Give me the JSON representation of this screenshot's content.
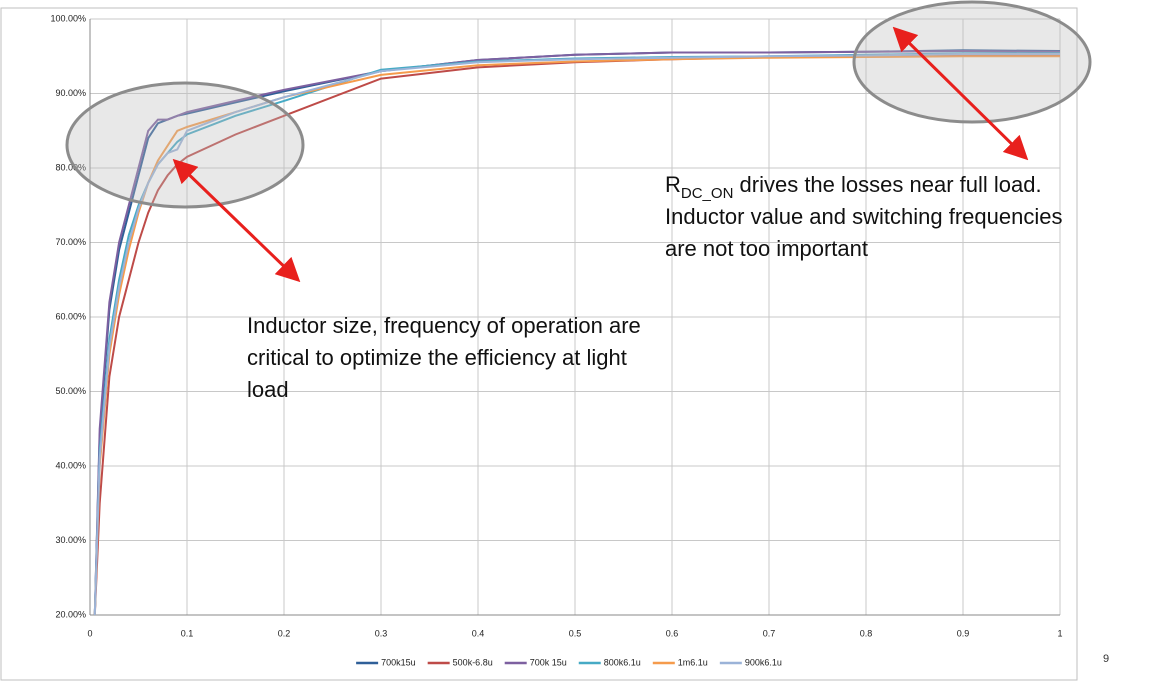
{
  "chart_data": {
    "type": "line",
    "x": [
      0.005,
      0.01,
      0.02,
      0.03,
      0.04,
      0.05,
      0.06,
      0.07,
      0.08,
      0.09,
      0.1,
      0.15,
      0.2,
      0.3,
      0.4,
      0.5,
      0.6,
      0.7,
      0.8,
      0.9,
      1.0
    ],
    "series": [
      {
        "name": "700k15u",
        "color": "#2f5f98",
        "values": [
          20,
          44,
          61,
          69,
          74,
          79,
          84,
          86,
          86.5,
          87,
          87.3,
          88.8,
          90.3,
          93,
          94.5,
          95.2,
          95.5,
          95.5,
          95.6,
          95.8,
          95.7
        ]
      },
      {
        "name": "500k-6.8u",
        "color": "#be4b48",
        "values": [
          20,
          35,
          52,
          60,
          65,
          70,
          74,
          77,
          79,
          80.5,
          81.5,
          84.5,
          87,
          92,
          93.5,
          94.2,
          94.6,
          94.9,
          95,
          95.2,
          95.2
        ]
      },
      {
        "name": "700k 15u",
        "color": "#7d60a0",
        "values": [
          20,
          45,
          62,
          70,
          75,
          80,
          85,
          86.5,
          86.5,
          87,
          87.5,
          89,
          90.5,
          93,
          94.5,
          95.2,
          95.5,
          95.5,
          95.6,
          95.7,
          95.6
        ]
      },
      {
        "name": "800k6.1u",
        "color": "#46aac5",
        "values": [
          20,
          42,
          57,
          65,
          71,
          75,
          78,
          80.5,
          82,
          83.5,
          84.5,
          87,
          89,
          93.2,
          94.3,
          94.7,
          94.9,
          95,
          95.2,
          95.4,
          95.4
        ]
      },
      {
        "name": "1m6.1u",
        "color": "#f59b4c",
        "values": [
          20,
          40,
          55,
          63,
          69,
          74,
          78,
          81,
          83,
          85,
          85.5,
          87.5,
          89.5,
          92.5,
          93.8,
          94.3,
          94.6,
          94.8,
          94.9,
          95,
          95
        ]
      },
      {
        "name": "900k6.1u",
        "color": "#9bb3d8",
        "values": [
          20,
          41,
          56,
          64,
          70,
          74.5,
          78,
          80.5,
          82,
          82.5,
          85,
          87.5,
          89.5,
          93,
          94.2,
          94.6,
          94.8,
          95,
          95.1,
          95.3,
          95.3
        ]
      }
    ],
    "xlim": [
      0,
      1
    ],
    "xticks": [
      0,
      0.1,
      0.2,
      0.3,
      0.4,
      0.5,
      0.6,
      0.7,
      0.8,
      0.9,
      1
    ],
    "ylim": [
      20,
      100
    ],
    "yticks": [
      {
        "value": 20,
        "label": "20.00%"
      },
      {
        "value": 30,
        "label": "30.00%"
      },
      {
        "value": 40,
        "label": "40.00%"
      },
      {
        "value": 50,
        "label": "50.00%"
      },
      {
        "value": 60,
        "label": "60.00%"
      },
      {
        "value": 70,
        "label": "70.00%"
      },
      {
        "value": 80,
        "label": "80.00%"
      },
      {
        "value": 90,
        "label": "90.00%"
      },
      {
        "value": 100,
        "label": "100.00%"
      }
    ],
    "grid": true,
    "legend": "bottom",
    "annotations": {
      "light_load": [
        "Inductor size, frequency of operation are",
        "critical to optimize the efficiency at light",
        "load"
      ],
      "full_load": {
        "symbol": "R",
        "subscript": "DC_ON",
        "line1": " drives the losses near full load.",
        "line2": "Inductor value and switching frequencies",
        "line3": "are not too important"
      }
    },
    "page_number": "9"
  }
}
